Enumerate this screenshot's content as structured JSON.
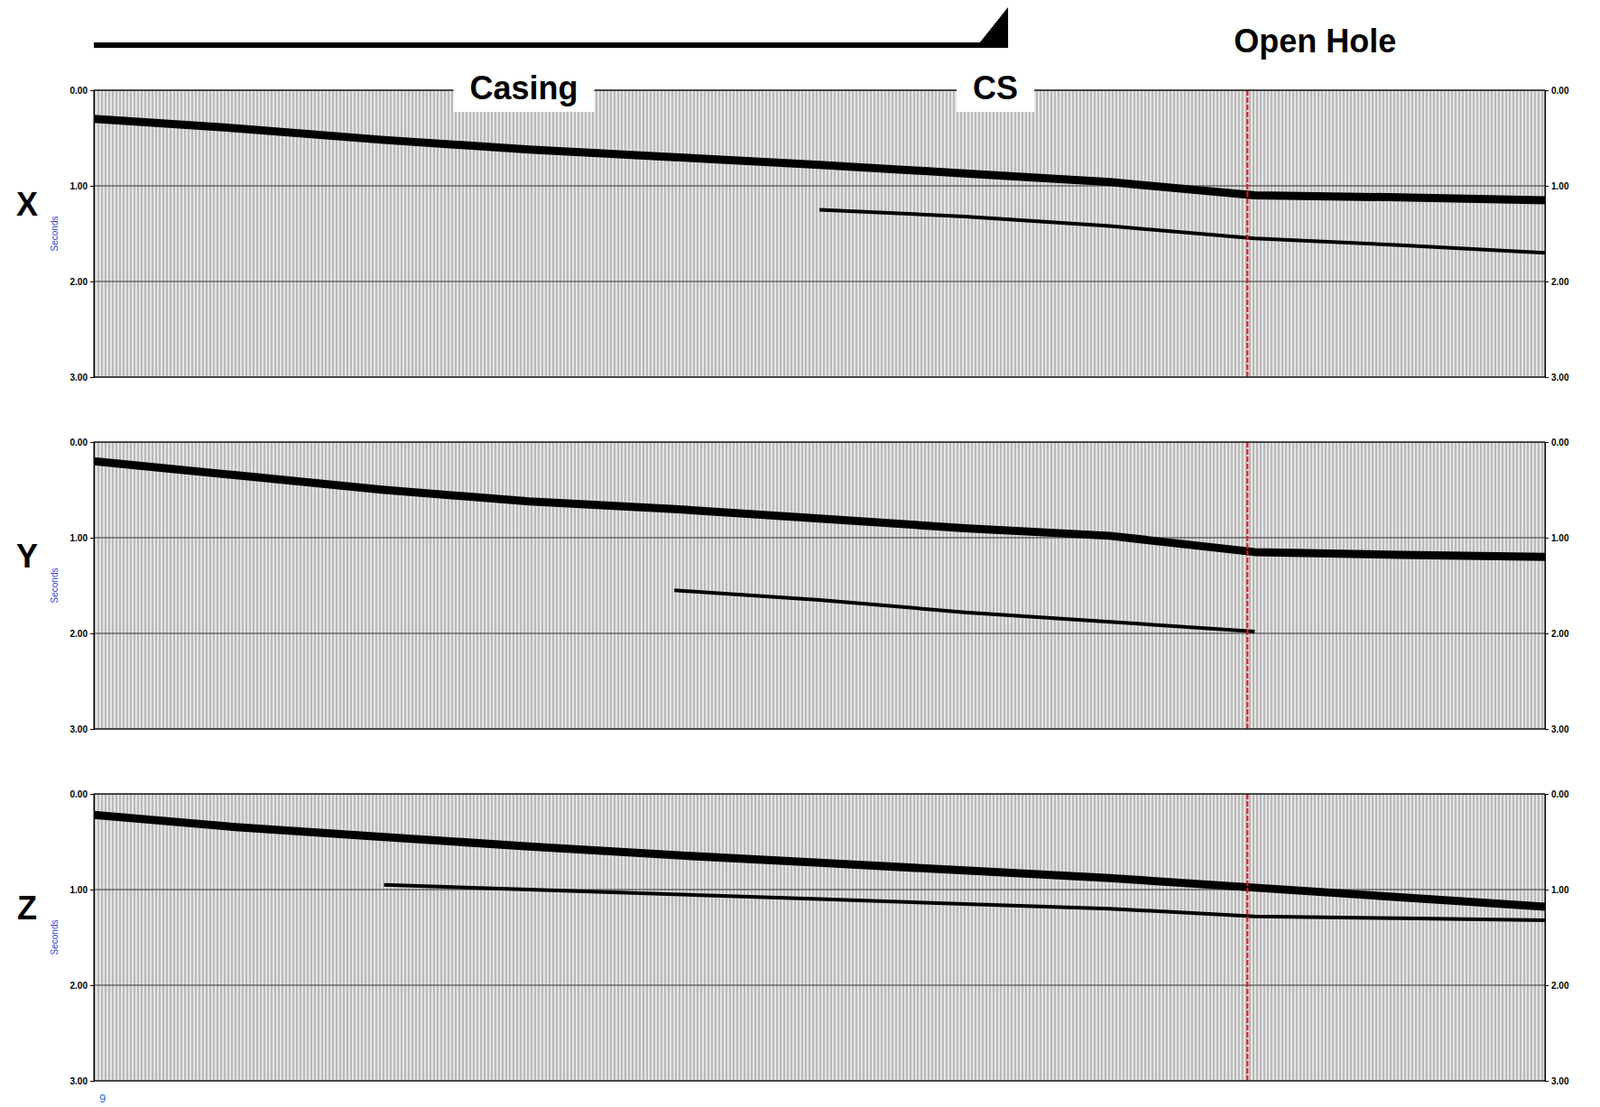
{
  "chart_data": [
    {
      "type": "line",
      "title": "X",
      "ylabel": "Seconds",
      "x": [
        0,
        10,
        20,
        30,
        40,
        50,
        60,
        70,
        80,
        90,
        100
      ],
      "xlim": [
        0,
        100
      ],
      "ylim": [
        0,
        3
      ],
      "yticks": [
        {
          "value": 0,
          "label": "0.00"
        },
        {
          "value": 1,
          "label": "1.00"
        },
        {
          "value": 2,
          "label": "2.00"
        },
        {
          "value": 3,
          "label": "3.00"
        }
      ],
      "tick_labels": "y",
      "grid": true,
      "series": [
        {
          "color": "#000000",
          "values": [
            0.3,
            0.4,
            0.52,
            0.62,
            0.7,
            0.78,
            0.87,
            0.96,
            1.1,
            1.12,
            1.15
          ]
        },
        {
          "color": "#000000",
          "values": [
            null,
            null,
            null,
            null,
            null,
            1.25,
            1.32,
            1.42,
            1.55,
            1.62,
            1.7
          ]
        }
      ],
      "vline": {
        "x": 79.5,
        "color": "#e8141c"
      }
    },
    {
      "type": "line",
      "title": "Y",
      "ylabel": "Seconds",
      "x": [
        0,
        10,
        20,
        30,
        40,
        50,
        60,
        70,
        80,
        90,
        100
      ],
      "xlim": [
        0,
        100
      ],
      "ylim": [
        0,
        3
      ],
      "yticks": [
        {
          "value": 0,
          "label": "0.00"
        },
        {
          "value": 1,
          "label": "1.00"
        },
        {
          "value": 2,
          "label": "2.00"
        },
        {
          "value": 3,
          "label": "3.00"
        }
      ],
      "tick_labels": "y",
      "grid": true,
      "series": [
        {
          "color": "#000000",
          "values": [
            0.2,
            0.35,
            0.5,
            0.62,
            0.7,
            0.8,
            0.9,
            0.98,
            1.15,
            1.18,
            1.2
          ]
        },
        {
          "color": "#000000",
          "values": [
            null,
            null,
            null,
            null,
            1.55,
            1.65,
            1.78,
            1.88,
            1.98,
            null,
            null
          ]
        }
      ],
      "vline": {
        "x": 79.5,
        "color": "#e8141c"
      }
    },
    {
      "type": "line",
      "title": "Z",
      "ylabel": "Seconds",
      "x": [
        0,
        10,
        20,
        30,
        40,
        50,
        60,
        70,
        80,
        90,
        100
      ],
      "xlim": [
        0,
        100
      ],
      "ylim": [
        0,
        3
      ],
      "yticks": [
        {
          "value": 0,
          "label": "0.00"
        },
        {
          "value": 1,
          "label": "1.00"
        },
        {
          "value": 2,
          "label": "2.00"
        },
        {
          "value": 3,
          "label": "3.00"
        }
      ],
      "tick_labels": "y",
      "grid": true,
      "series": [
        {
          "color": "#000000",
          "values": [
            0.22,
            0.35,
            0.45,
            0.55,
            0.64,
            0.72,
            0.8,
            0.88,
            0.98,
            1.08,
            1.18
          ]
        },
        {
          "color": "#000000",
          "values": [
            null,
            null,
            0.95,
            1.0,
            1.05,
            1.1,
            1.15,
            1.2,
            1.28,
            1.3,
            1.32
          ]
        }
      ],
      "vline": {
        "x": 79.5,
        "color": "#e8141c"
      }
    }
  ],
  "header": {
    "casing": "Casing",
    "casing_shoe": "CS",
    "open_hole": "Open Hole",
    "casing_shoe_x": 63
  },
  "page_number": "9"
}
